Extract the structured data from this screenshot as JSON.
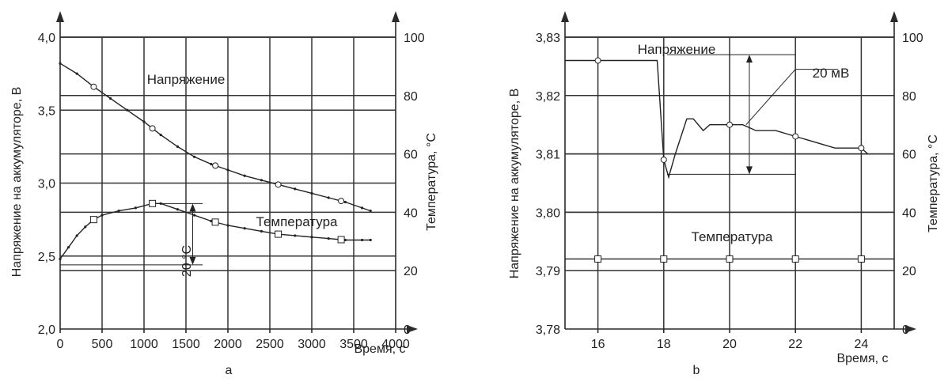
{
  "panels": [
    {
      "label": "a",
      "x_title": "Время, с",
      "y_title_left": "Напряжение на аккумуляторе, В",
      "y_title_right": "Температура, °С",
      "x_ticks": [
        "0",
        "500",
        "1000",
        "1500",
        "2000",
        "2500",
        "3000",
        "3500",
        "4000"
      ],
      "yl_ticks": [
        "2,0",
        "2,5",
        "3,0",
        "3,5",
        "4,0"
      ],
      "yr_ticks": [
        "0",
        "20",
        "40",
        "60",
        "80",
        "100"
      ],
      "voltage_label": "Напряжение",
      "temperature_label": "Температура",
      "delta_label": "20 °С"
    },
    {
      "label": "b",
      "x_title": "Время, с",
      "y_title_left": "Напряжение на аккумуляторе, В",
      "y_title_right": "Температура, °С",
      "x_ticks": [
        "16",
        "18",
        "20",
        "22",
        "24"
      ],
      "yl_ticks": [
        "3,78",
        "3,79",
        "3,80",
        "3,81",
        "3,82",
        "3,83"
      ],
      "yr_ticks": [
        "0",
        "20",
        "40",
        "60",
        "80",
        "100"
      ],
      "voltage_label": "Напряжение",
      "temperature_label": "Температура",
      "delta_label": "20 мВ"
    }
  ],
  "chart_data": [
    {
      "type": "line",
      "xlabel": "Время, с",
      "ylabel": "Напряжение на аккумуляторе, В",
      "y2label": "Температура, °С",
      "xlim": [
        0,
        4000
      ],
      "ylim": [
        2.0,
        4.0
      ],
      "y2lim": [
        0,
        100
      ],
      "grid": true,
      "series": [
        {
          "name": "Напряжение",
          "axis": "left",
          "x": [
            0,
            200,
            400,
            600,
            800,
            1000,
            1200,
            1400,
            1600,
            1800,
            2000,
            2200,
            2400,
            2600,
            2800,
            3000,
            3200,
            3400,
            3600,
            3700
          ],
          "y": [
            3.82,
            3.75,
            3.66,
            3.58,
            3.5,
            3.42,
            3.33,
            3.25,
            3.18,
            3.13,
            3.09,
            3.05,
            3.02,
            2.99,
            2.96,
            2.93,
            2.9,
            2.87,
            2.83,
            2.81
          ]
        },
        {
          "name": "Температура",
          "axis": "right",
          "x": [
            0,
            100,
            200,
            300,
            400,
            500,
            700,
            900,
            1100,
            1200,
            1400,
            1600,
            1800,
            2000,
            2200,
            2400,
            2600,
            2800,
            3000,
            3200,
            3400,
            3600,
            3700
          ],
          "y": [
            24,
            28,
            32,
            35,
            37.5,
            39,
            40.5,
            41.5,
            43,
            43,
            41,
            39,
            37,
            35.5,
            34.5,
            33.5,
            32.5,
            32,
            31.5,
            31,
            30.5,
            30.5,
            30.5
          ]
        }
      ],
      "annotations": [
        "Напряжение",
        "Температура",
        "20 °С",
        "а"
      ]
    },
    {
      "type": "line",
      "xlabel": "Время, с",
      "ylabel": "Напряжение на аккумуляторе, В",
      "y2label": "Температура, °С",
      "xlim": [
        15,
        25
      ],
      "ylim": [
        3.78,
        3.83
      ],
      "y2lim": [
        0,
        100
      ],
      "grid": true,
      "series": [
        {
          "name": "Напряжение",
          "axis": "left",
          "x": [
            15,
            16,
            17,
            17.8,
            18.0,
            18.15,
            18.35,
            18.7,
            18.9,
            19.2,
            19.4,
            19.6,
            20.0,
            20.4,
            20.8,
            21.4,
            22.0,
            22.6,
            23.2,
            24.0,
            24.2
          ],
          "y": [
            3.826,
            3.826,
            3.826,
            3.826,
            3.809,
            3.806,
            3.81,
            3.816,
            3.816,
            3.814,
            3.815,
            3.815,
            3.815,
            3.815,
            3.814,
            3.814,
            3.813,
            3.812,
            3.811,
            3.811,
            3.81
          ]
        },
        {
          "name": "Температура",
          "axis": "right",
          "x": [
            15,
            16,
            18,
            20,
            22,
            24,
            25
          ],
          "y": [
            24,
            24,
            24,
            24,
            24,
            24,
            24
          ]
        }
      ],
      "annotations": [
        "Напряжение",
        "Температура",
        "20 мВ",
        "b"
      ]
    }
  ]
}
